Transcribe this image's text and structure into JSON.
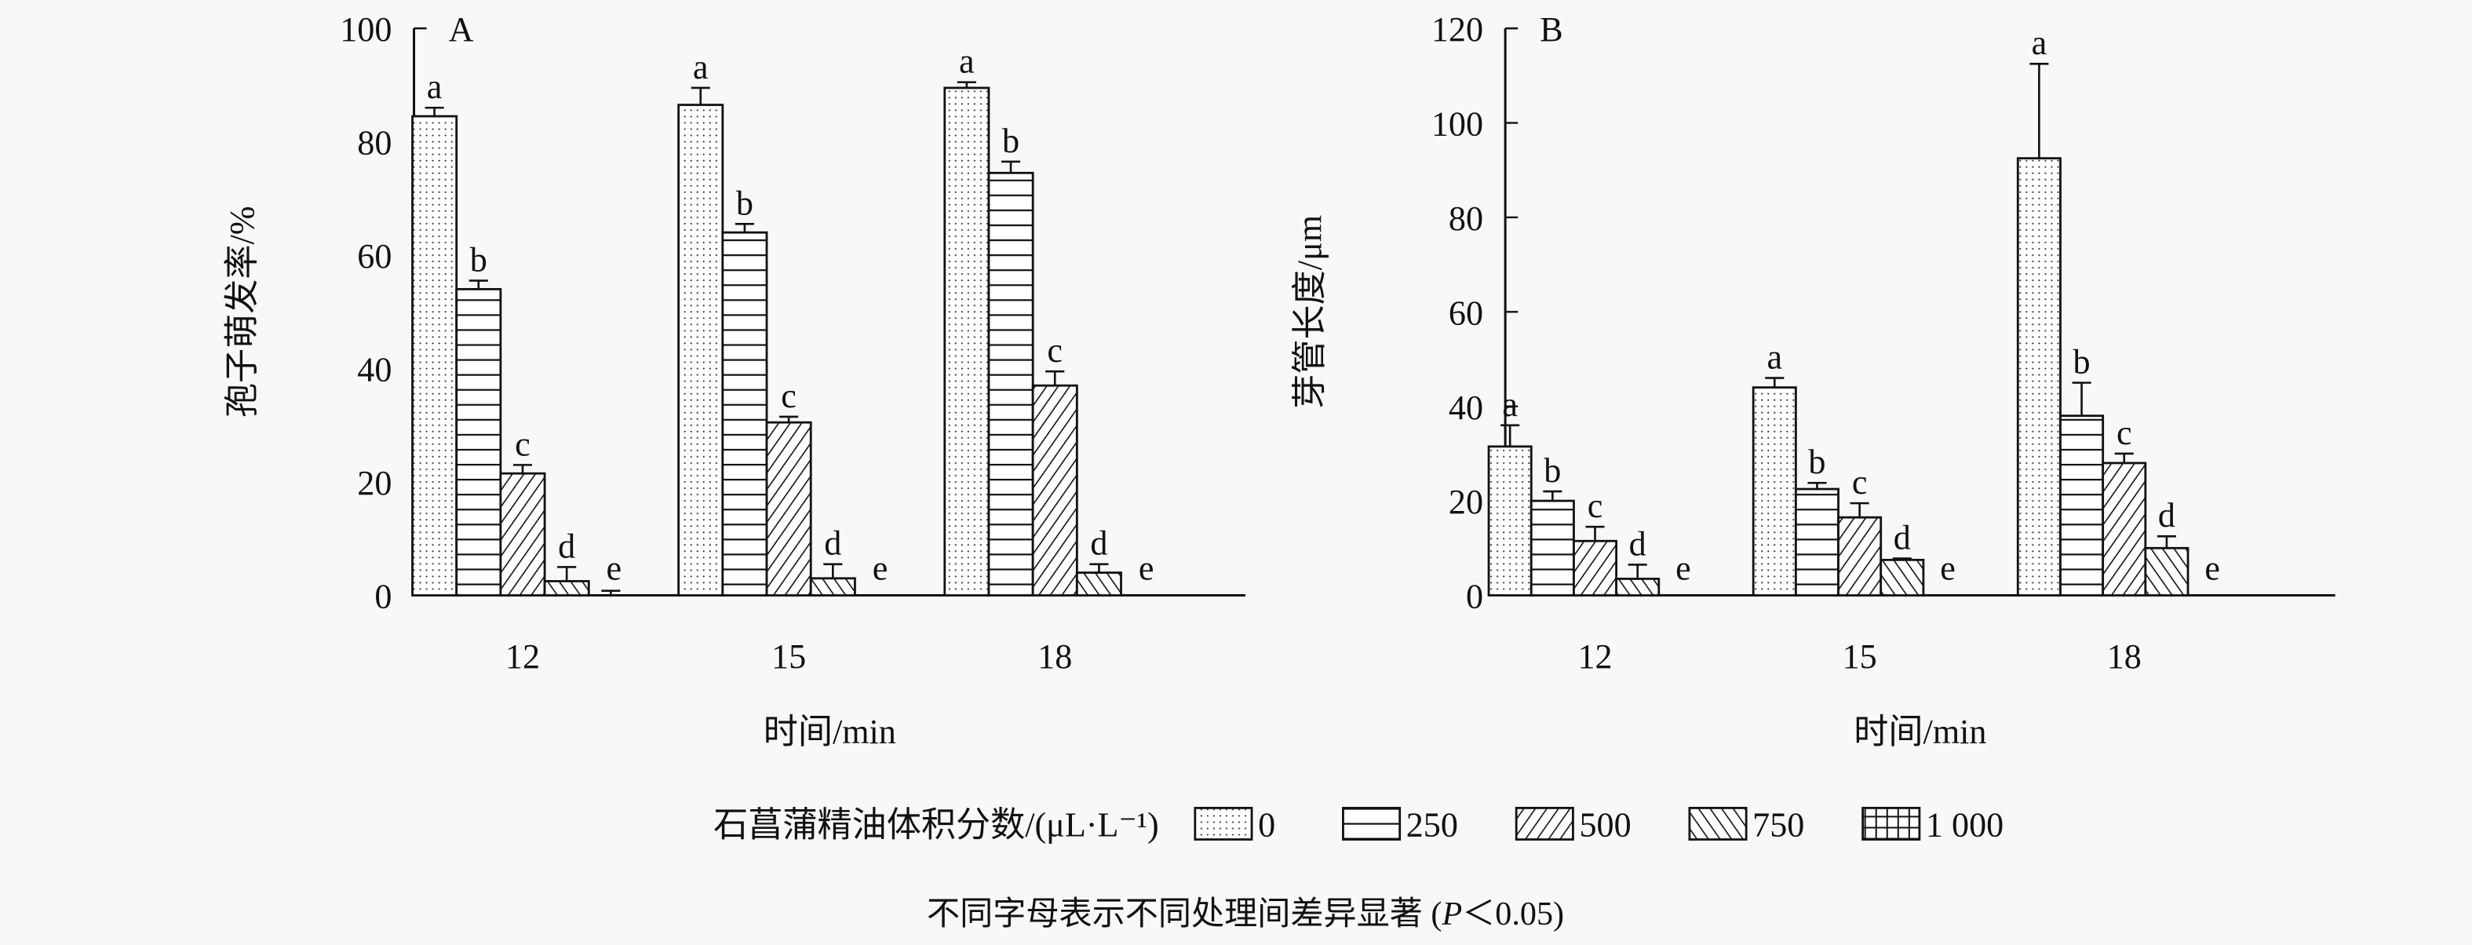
{
  "chart_data": [
    {
      "type": "bar",
      "panel_label": "A",
      "title": "",
      "xlabel": "时间/min",
      "ylabel": "孢子萌发率/%",
      "categories": [
        "12",
        "15",
        "18"
      ],
      "ylim": [
        0,
        100
      ],
      "yticks": [
        "0",
        "20",
        "40",
        "60",
        "80",
        "100"
      ],
      "series": [
        {
          "name": "0",
          "values": [
            84.5,
            86.5,
            89.5
          ],
          "errors": [
            1.5,
            3.0,
            1.0
          ],
          "letters": [
            "a",
            "a",
            "a"
          ]
        },
        {
          "name": "250",
          "values": [
            54.0,
            64.0,
            74.5
          ],
          "errors": [
            1.5,
            1.5,
            2.0
          ],
          "letters": [
            "b",
            "b",
            "b"
          ]
        },
        {
          "name": "500",
          "values": [
            21.5,
            30.5,
            37.0
          ],
          "errors": [
            1.5,
            1.0,
            2.5
          ],
          "letters": [
            "c",
            "c",
            "c"
          ]
        },
        {
          "name": "750",
          "values": [
            2.5,
            3.0,
            4.0
          ],
          "errors": [
            2.5,
            2.5,
            1.5
          ],
          "letters": [
            "d",
            "d",
            "d"
          ]
        },
        {
          "name": "1 000",
          "values": [
            0,
            0,
            0
          ],
          "errors": [
            0.8,
            0,
            0
          ],
          "letters": [
            "e",
            "e",
            "e"
          ]
        }
      ]
    },
    {
      "type": "bar",
      "panel_label": "B",
      "title": "",
      "xlabel": "时间/min",
      "ylabel": "芽管长度/μm",
      "categories": [
        "12",
        "15",
        "18"
      ],
      "ylim": [
        0,
        120
      ],
      "yticks": [
        "0",
        "20",
        "40",
        "60",
        "80",
        "100",
        "120"
      ],
      "series": [
        {
          "name": "0",
          "values": [
            31.5,
            44.0,
            92.5
          ],
          "errors": [
            4.5,
            2.0,
            20.0
          ],
          "letters": [
            "a",
            "a",
            "a"
          ]
        },
        {
          "name": "250",
          "values": [
            20.0,
            22.5,
            38.0
          ],
          "errors": [
            2.0,
            1.3,
            7.0
          ],
          "letters": [
            "b",
            "b",
            "b"
          ]
        },
        {
          "name": "500",
          "values": [
            11.5,
            16.5,
            28.0
          ],
          "errors": [
            3.0,
            3.0,
            2.0
          ],
          "letters": [
            "c",
            "c",
            "c"
          ]
        },
        {
          "name": "750",
          "values": [
            3.5,
            7.5,
            10.0
          ],
          "errors": [
            3.0,
            0.3,
            2.5
          ],
          "letters": [
            "d",
            "d",
            "d"
          ]
        },
        {
          "name": "1 000",
          "values": [
            0,
            0,
            0
          ],
          "errors": [
            0,
            0,
            0
          ],
          "letters": [
            "e",
            "e",
            "e"
          ]
        }
      ]
    }
  ],
  "legend": {
    "title": "石菖蒲精油体积分数/(μL·L⁻¹)",
    "placement": "bottom-center",
    "items": [
      "0",
      "250",
      "500",
      "750",
      "1 000"
    ],
    "patterns": [
      "dots",
      "horizontal",
      "diagonal-up",
      "diagonal-down",
      "grid"
    ]
  },
  "caption": {
    "prefix": "不同字母表示不同处理间差异显著 (",
    "p": "P",
    "suffix": "＜0.05)"
  },
  "colors": {
    "ink": "#111111",
    "background": "#f8f8f8"
  }
}
